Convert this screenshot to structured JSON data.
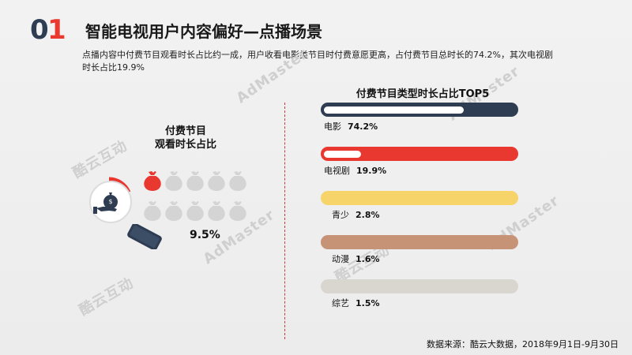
{
  "header": {
    "num_left": "0",
    "num_right": "1",
    "title": "智能电视用户内容偏好—点播场景",
    "subtitle": "点播内容中付费节目观看时长占比约一成，用户收看电影类节目时付费意愿更高，占付费节目总时长的74.2%，其次电视剧时长占比19.9%"
  },
  "watermarks": [
    "AdMaster",
    "酷云互动",
    "AdMaster",
    "酷云互动",
    "AdMaster",
    "酷云互动",
    "AdMaster"
  ],
  "left_panel": {
    "title_line1": "付费节目",
    "title_line2": "观看时长占比",
    "percent": "9.5%"
  },
  "right_panel": {
    "title": "付费节目类型时长占比TOP5"
  },
  "colors": {
    "navy": "#2e3d52",
    "red": "#e8382f",
    "yellow": "#f6d46a",
    "tan": "#c69377",
    "gray": "#d9d6d0",
    "bag_gray": "#d4d4d4"
  },
  "chart_data": [
    {
      "type": "pictograph",
      "title": "付费节目观看时长占比",
      "value": 9.5,
      "unit": "%",
      "icons_total": 10,
      "icons_filled": 1
    },
    {
      "type": "bar",
      "title": "付费节目类型时长占比TOP5",
      "categories": [
        "电影",
        "电视剧",
        "青少",
        "动漫",
        "综艺"
      ],
      "values": [
        74.2,
        19.9,
        2.8,
        1.6,
        1.5
      ],
      "value_labels": [
        "74.2%",
        "19.9%",
        "2.8%",
        "1.6%",
        "1.5%"
      ],
      "bar_colors": [
        "#2e3d52",
        "#e8382f",
        "#f6d46a",
        "#c69377",
        "#d9d6d0"
      ],
      "xlim": [
        0,
        100
      ]
    }
  ],
  "footer": {
    "source": "数据来源：酷云大数据，2018年9月1日-9月30日"
  }
}
